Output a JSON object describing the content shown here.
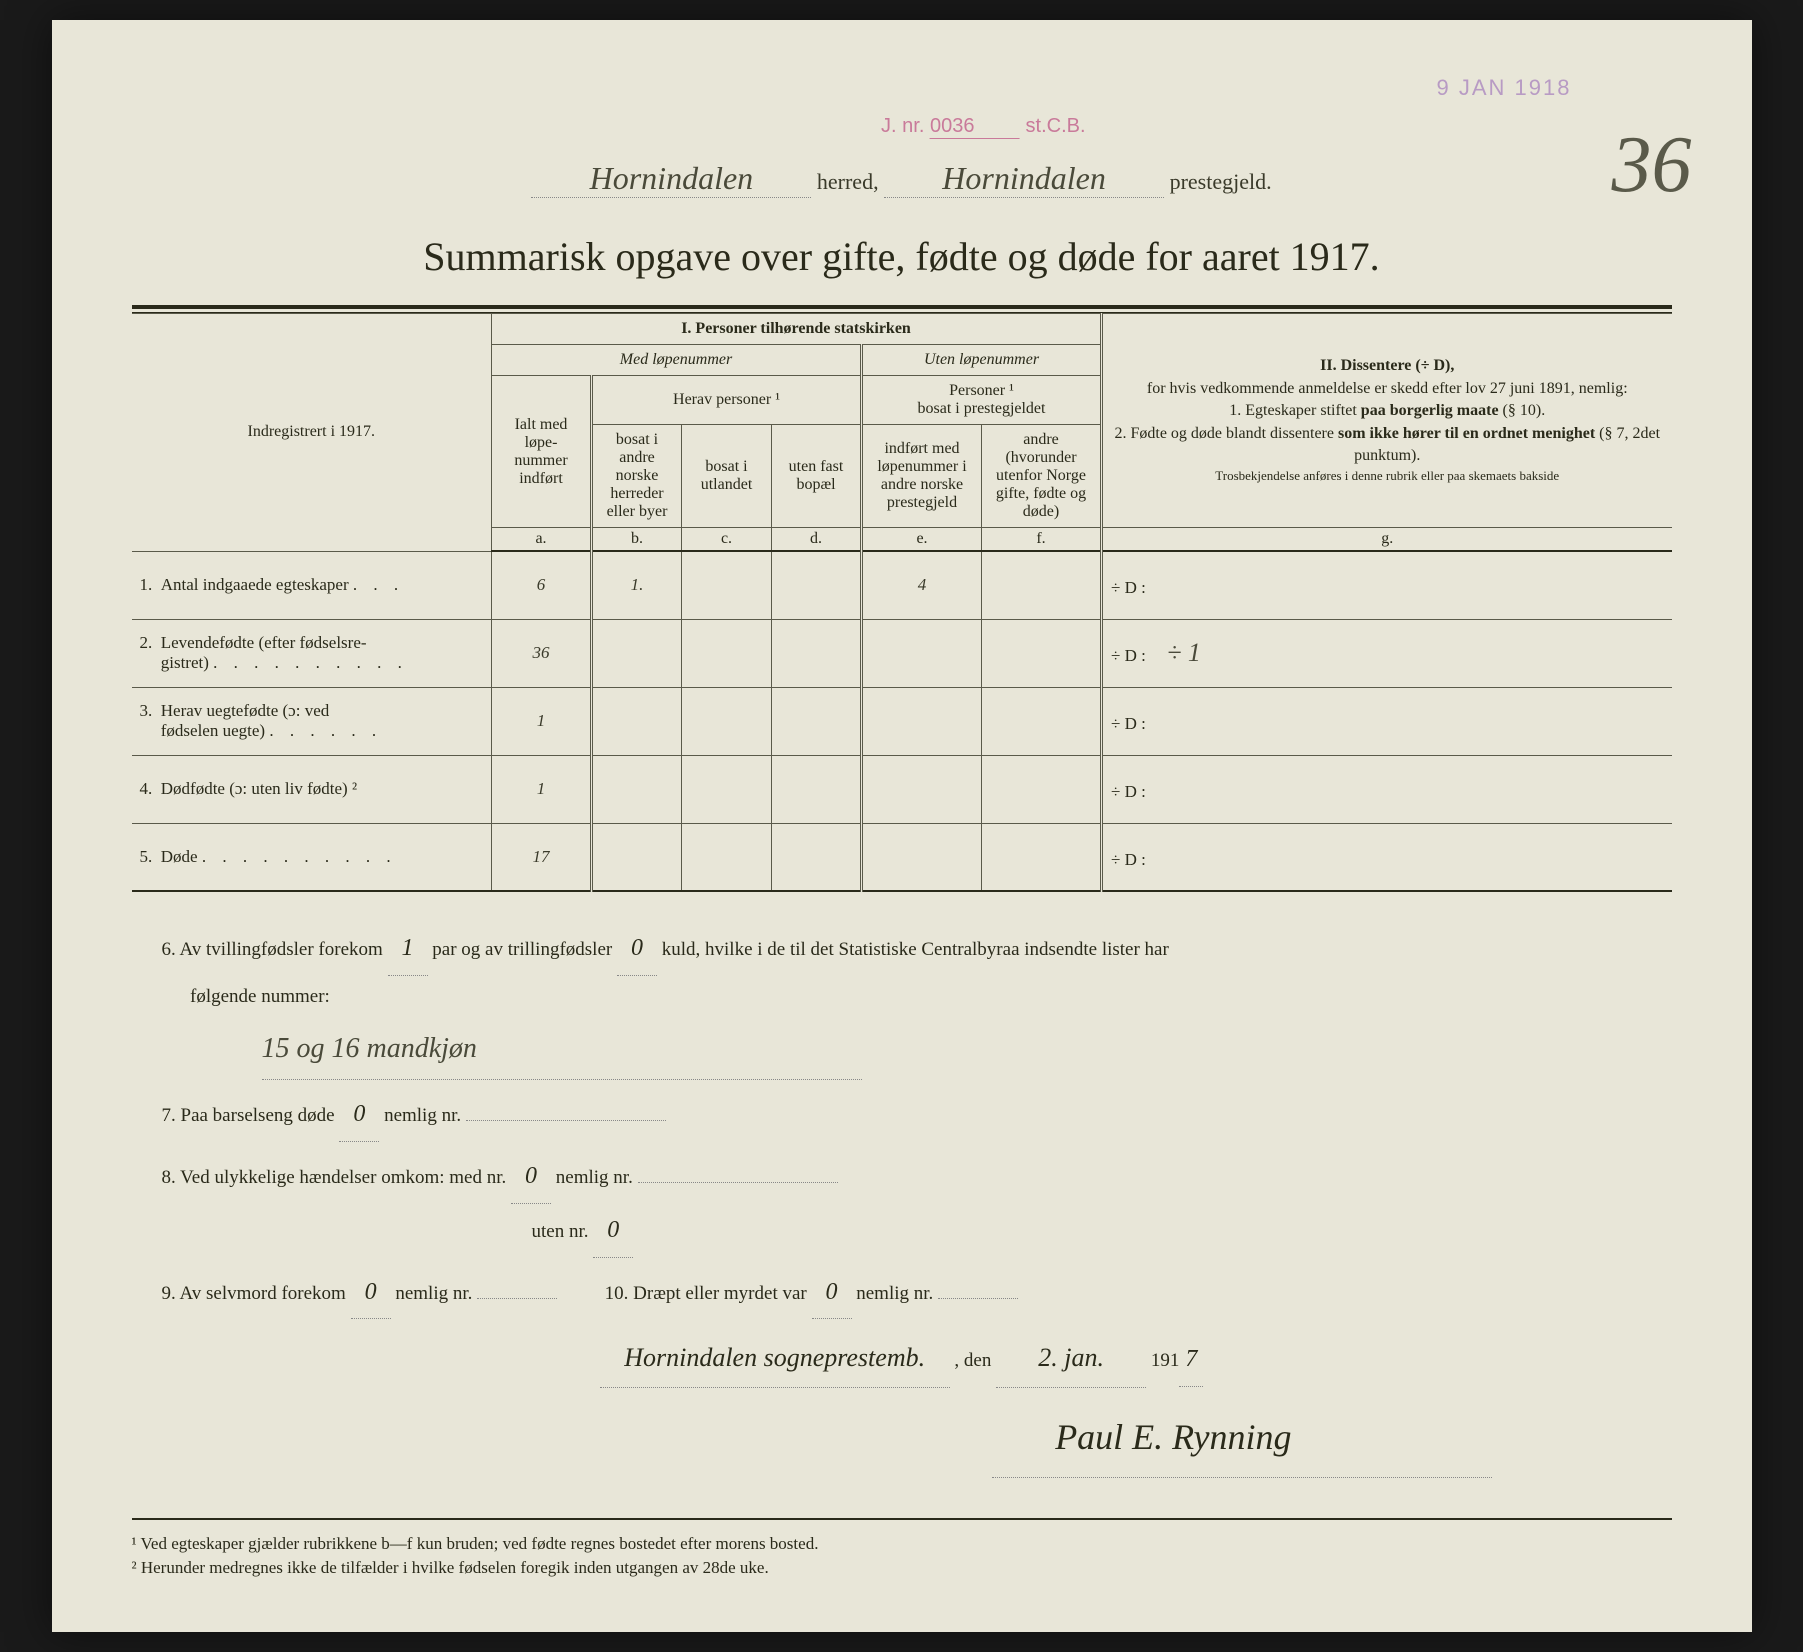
{
  "colors": {
    "paper": "#e8e6d8",
    "ink": "#2a2a1a",
    "stamp_purple": "#b89bc4",
    "stamp_pink": "#c97a9a",
    "handwriting": "#3a3a2a"
  },
  "stamps": {
    "date": "9 JAN 1918",
    "ref_prefix": "J. nr.",
    "ref_num": "0036",
    "ref_suffix": "st.C.B."
  },
  "page_number": "36",
  "header": {
    "herred_value": "Hornindalen",
    "herred_label": "herred,",
    "prestegjeld_value": "Hornindalen",
    "prestegjeld_label": "prestegjeld."
  },
  "title": "Summarisk opgave over gifte, fødte og døde for aaret 1917.",
  "table_headers": {
    "section1_title": "I.  Personer tilhørende statskirken",
    "med_lope": "Med løpenummer",
    "uten_lope": "Uten løpenummer",
    "herav_personer": "Herav personer ¹",
    "personer_bosat": "Personer ¹\nbosat i prestegjeldet",
    "indregistrert": "Indregistrert i 1917.",
    "col_a": "Ialt med løpe-nummer indført",
    "col_b": "bosat i andre norske herreder eller byer",
    "col_c": "bosat i utlandet",
    "col_d": "uten fast bopæl",
    "col_e": "indført med løpenummer i andre norske prestegjeld",
    "col_f": "andre (hvorunder utenfor Norge gifte, fødte og døde)",
    "letter_a": "a.",
    "letter_b": "b.",
    "letter_c": "c.",
    "letter_d": "d.",
    "letter_e": "e.",
    "letter_f": "f.",
    "letter_g": "g.",
    "section2_title": "II.  Dissentere (÷ D),",
    "section2_text": "for hvis vedkommende anmeldelse er skedd efter lov 27 juni 1891, nemlig:\n1. Egteskaper stiftet paa borgerlig maate (§ 10).\n2. Fødte og døde blandt dissentere som ikke hører til en ordnet menighet (§ 7, 2det punktum).",
    "section2_note": "Trosbekjendelse anføres i denne rubrik eller paa skemaets bakside"
  },
  "rows": [
    {
      "num": "1.",
      "label": "Antal indgaaede egteskaper",
      "dots": ". . .",
      "a": "6",
      "b": "1.",
      "c": "",
      "d": "",
      "e": "4",
      "f": "",
      "g_prefix": "÷ D :",
      "g_val": ""
    },
    {
      "num": "2.",
      "label": "Levendefødte (efter fødselsre-\ngistret)",
      "dots": ". . . . . . . . . .",
      "a": "36",
      "b": "",
      "c": "",
      "d": "",
      "e": "",
      "f": "",
      "g_prefix": "÷ D :",
      "g_val": "÷ 1"
    },
    {
      "num": "3.",
      "label": "Herav uegtefødte (ɔ: ved\nfødselen uegte)",
      "dots": ". . . . . .",
      "a": "1",
      "b": "",
      "c": "",
      "d": "",
      "e": "",
      "f": "",
      "g_prefix": "÷ D :",
      "g_val": ""
    },
    {
      "num": "4.",
      "label": "Dødfødte (ɔ: uten liv fødte) ²",
      "dots": "",
      "a": "1",
      "b": "",
      "c": "",
      "d": "",
      "e": "",
      "f": "",
      "g_prefix": "÷ D :",
      "g_val": ""
    },
    {
      "num": "5.",
      "label": "Døde",
      "dots": ". . . . . . . . . .",
      "a": "17",
      "b": "",
      "c": "",
      "d": "",
      "e": "",
      "f": "",
      "g_prefix": "÷ D :",
      "g_val": ""
    }
  ],
  "lower": {
    "line6_a": "6.   Av tvillingfødsler forekom",
    "line6_val1": "1",
    "line6_b": "par og av trillingfødsler",
    "line6_val2": "0",
    "line6_c": "kuld, hvilke i de til det Statistiske Centralbyraa indsendte lister har",
    "line6_d": "følgende nummer:",
    "line6_note": "15 og 16 mandkjøn",
    "line7_a": "7.   Paa barselseng døde",
    "line7_val": "0",
    "line7_b": "nemlig nr.",
    "line8_a": "8.   Ved ulykkelige hændelser omkom:  med nr.",
    "line8_val1": "0",
    "line8_b": "nemlig nr.",
    "line8_c": "uten nr.",
    "line8_val2": "0",
    "line9_a": "9.   Av selvmord forekom",
    "line9_val": "0",
    "line9_b": "nemlig nr.",
    "line10_a": "10.   Dræpt eller myrdet var",
    "line10_val": "0",
    "line10_b": "nemlig nr.",
    "place": "Hornindalen sogneprestemb.",
    "den": ", den",
    "date_val": "2. jan.",
    "year_prefix": "191",
    "year_val": "7",
    "signature": "Paul E. Rynning"
  },
  "footnotes": {
    "f1": "¹ Ved egteskaper gjælder rubrikkene b—f kun bruden; ved fødte regnes bostedet efter morens bosted.",
    "f2": "² Herunder medregnes ikke de tilfælder i hvilke fødselen foregik inden utgangen av 28de uke."
  }
}
